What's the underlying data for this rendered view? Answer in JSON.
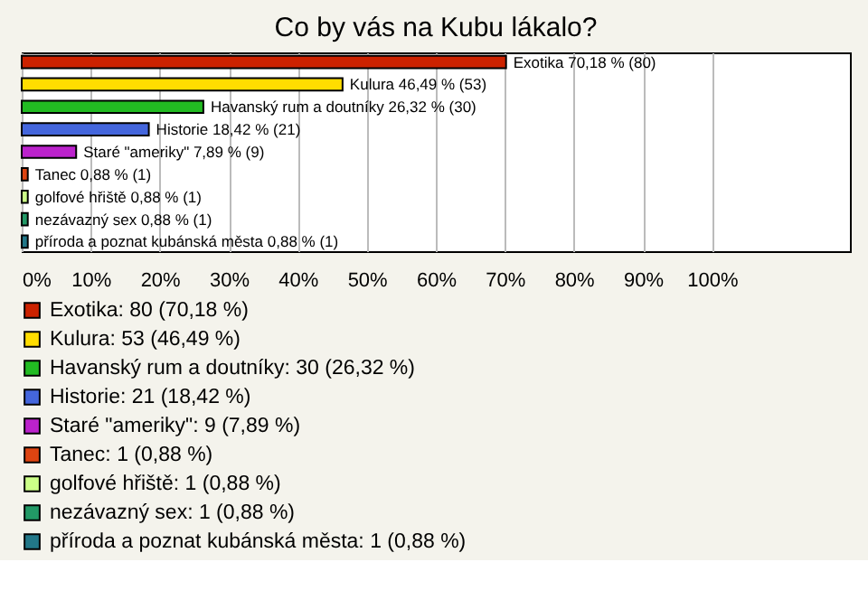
{
  "chart_data": {
    "type": "bar",
    "orientation": "horizontal",
    "title": "Co by vás na Kubu lákalo?",
    "categories": [
      null,
      null,
      null,
      null,
      null,
      null,
      null,
      null,
      null
    ],
    "series": [
      {
        "name": "Exotika: 80 (70,18 %)",
        "color": "#cc2200",
        "values": [
          70.18,
          null,
          null,
          null,
          null,
          null,
          null,
          null,
          null
        ],
        "value_labels": [
          "Exotika 70,18 % (80)",
          null,
          null,
          null,
          null,
          null,
          null,
          null,
          null
        ]
      },
      {
        "name": "Kulura: 53 (46,49 %)",
        "color": "#ffdd00",
        "values": [
          null,
          46.49,
          null,
          null,
          null,
          null,
          null,
          null,
          null
        ],
        "value_labels": [
          null,
          "Kulura 46,49 % (53)",
          null,
          null,
          null,
          null,
          null,
          null,
          null
        ]
      },
      {
        "name": "Havanský rum a doutníky: 30 (26,32 %)",
        "color": "#22bb22",
        "values": [
          null,
          null,
          26.32,
          null,
          null,
          null,
          null,
          null,
          null
        ],
        "value_labels": [
          null,
          null,
          "Havanský rum a doutníky 26,32 % (30)",
          null,
          null,
          null,
          null,
          null,
          null
        ]
      },
      {
        "name": "Historie: 21 (18,42 %)",
        "color": "#4466dd",
        "values": [
          null,
          null,
          null,
          18.42,
          null,
          null,
          null,
          null,
          null
        ],
        "value_labels": [
          null,
          null,
          null,
          "Historie 18,42 % (21)",
          null,
          null,
          null,
          null,
          null
        ]
      },
      {
        "name": "Staré \"ameriky\": 9 (7,89 %)",
        "color": "#bb22cc",
        "values": [
          null,
          null,
          null,
          null,
          7.89,
          null,
          null,
          null,
          null
        ],
        "value_labels": [
          null,
          null,
          null,
          null,
          "Staré \"ameriky\" 7,89 % (9)",
          null,
          null,
          null,
          null
        ]
      },
      {
        "name": "Tanec: 1 (0,88 %)",
        "color": "#dd4411",
        "values": [
          null,
          null,
          null,
          null,
          null,
          0.88,
          null,
          null,
          null
        ],
        "value_labels": [
          null,
          null,
          null,
          null,
          null,
          "Tanec 0,88 % (1)",
          null,
          null,
          null
        ]
      },
      {
        "name": "golfové hřiště: 1 (0,88 %)",
        "color": "#ccff88",
        "values": [
          null,
          null,
          null,
          null,
          null,
          null,
          0.88,
          null,
          null
        ],
        "value_labels": [
          null,
          null,
          null,
          null,
          null,
          null,
          "golfové hřiště 0,88 % (1)",
          null,
          null
        ]
      },
      {
        "name": "nezávazný sex: 1 (0,88 %)",
        "color": "#229966",
        "values": [
          null,
          null,
          null,
          null,
          null,
          null,
          null,
          0.88,
          null
        ],
        "value_labels": [
          null,
          null,
          null,
          null,
          null,
          null,
          null,
          "nezávazný sex 0,88 % (1)",
          null
        ]
      },
      {
        "name": "příroda a poznat kubánská města: 1 (0,88 %)",
        "color": "#227788",
        "values": [
          null,
          null,
          null,
          null,
          null,
          null,
          null,
          null,
          0.88
        ],
        "value_labels": [
          null,
          null,
          null,
          null,
          null,
          null,
          null,
          null,
          "příroda a poznat kubánská města 0,88 % (1)"
        ]
      }
    ],
    "xlim": [
      0,
      120
    ],
    "xticks": [
      {
        "value": 0,
        "label": "0%"
      },
      {
        "value": 10,
        "label": "10%"
      },
      {
        "value": 20,
        "label": "20%"
      },
      {
        "value": 30,
        "label": "30%"
      },
      {
        "value": 40,
        "label": "40%"
      },
      {
        "value": 50,
        "label": "50%"
      },
      {
        "value": 60,
        "label": "60%"
      },
      {
        "value": 70,
        "label": "70%"
      },
      {
        "value": 80,
        "label": "80%"
      },
      {
        "value": 90,
        "label": "90%"
      },
      {
        "value": 100,
        "label": "100%"
      }
    ],
    "grid": "x",
    "legend": "bottom",
    "tick_labels": "x"
  }
}
